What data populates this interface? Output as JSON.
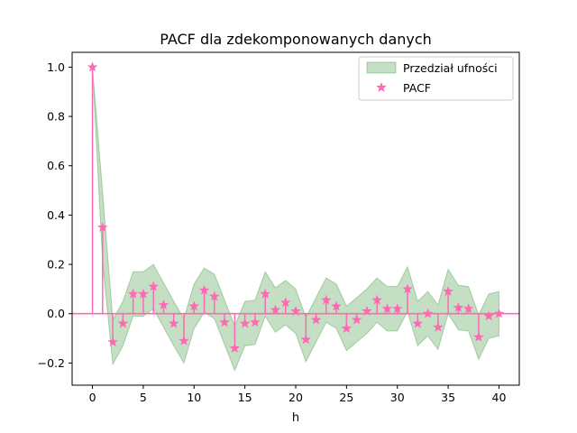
{
  "chart_data": {
    "type": "stem",
    "title": "PACF dla zdekomponowanych danych",
    "xlabel": "h",
    "ylabel": "",
    "xlim": [
      -2,
      42
    ],
    "ylim": [
      -0.29,
      1.06
    ],
    "xticks": [
      0,
      5,
      10,
      15,
      20,
      25,
      30,
      35,
      40
    ],
    "yticks": [
      -0.2,
      0.0,
      0.2,
      0.4,
      0.6,
      0.8,
      1.0
    ],
    "ytick_labels": [
      "−0.2",
      "0.0",
      "0.2",
      "0.4",
      "0.6",
      "0.8",
      "1.0"
    ],
    "legend_position": "top-right",
    "grid": false,
    "series": [
      {
        "name": "PACF",
        "kind": "stem",
        "marker": "star",
        "color": "#ff69b4",
        "x": [
          0,
          1,
          2,
          3,
          4,
          5,
          6,
          7,
          8,
          9,
          10,
          11,
          12,
          13,
          14,
          15,
          16,
          17,
          18,
          19,
          20,
          21,
          22,
          23,
          24,
          25,
          26,
          27,
          28,
          29,
          30,
          31,
          32,
          33,
          34,
          35,
          36,
          37,
          38,
          39,
          40
        ],
        "y": [
          1.0,
          0.35,
          -0.115,
          -0.04,
          0.08,
          0.08,
          0.11,
          0.035,
          -0.04,
          -0.11,
          0.03,
          0.095,
          0.07,
          -0.035,
          -0.14,
          -0.04,
          -0.035,
          0.08,
          0.015,
          0.045,
          0.01,
          -0.105,
          -0.025,
          0.055,
          0.03,
          -0.06,
          -0.025,
          0.01,
          0.055,
          0.02,
          0.02,
          0.1,
          -0.04,
          0.0,
          -0.055,
          0.09,
          0.025,
          0.02,
          -0.095,
          -0.01,
          0.0
        ]
      },
      {
        "name": "Przedział ufności",
        "kind": "band",
        "color": "#2e8b2e",
        "x": [
          0,
          1,
          2,
          3,
          4,
          5,
          6,
          7,
          8,
          9,
          10,
          11,
          12,
          13,
          14,
          15,
          16,
          17,
          18,
          19,
          20,
          21,
          22,
          23,
          24,
          25,
          26,
          27,
          28,
          29,
          30,
          31,
          32,
          33,
          34,
          35,
          36,
          37,
          38,
          39,
          40
        ],
        "lower": [
          1.0,
          0.21,
          -0.205,
          -0.13,
          -0.01,
          -0.01,
          0.02,
          -0.055,
          -0.13,
          -0.2,
          -0.06,
          0.005,
          -0.02,
          -0.125,
          -0.23,
          -0.13,
          -0.125,
          -0.01,
          -0.075,
          -0.045,
          -0.08,
          -0.195,
          -0.115,
          -0.035,
          -0.06,
          -0.15,
          -0.115,
          -0.08,
          -0.035,
          -0.07,
          -0.07,
          0.01,
          -0.13,
          -0.09,
          -0.145,
          0.0,
          -0.065,
          -0.07,
          -0.185,
          -0.1,
          -0.09
        ],
        "upper": [
          1.0,
          0.49,
          -0.025,
          0.05,
          0.17,
          0.17,
          0.2,
          0.125,
          0.05,
          -0.02,
          0.12,
          0.185,
          0.16,
          0.055,
          -0.05,
          0.05,
          0.055,
          0.17,
          0.105,
          0.135,
          0.1,
          -0.015,
          0.065,
          0.145,
          0.12,
          0.03,
          0.065,
          0.1,
          0.145,
          0.11,
          0.11,
          0.19,
          0.05,
          0.09,
          0.035,
          0.18,
          0.115,
          0.11,
          -0.005,
          0.08,
          0.09
        ]
      }
    ]
  }
}
